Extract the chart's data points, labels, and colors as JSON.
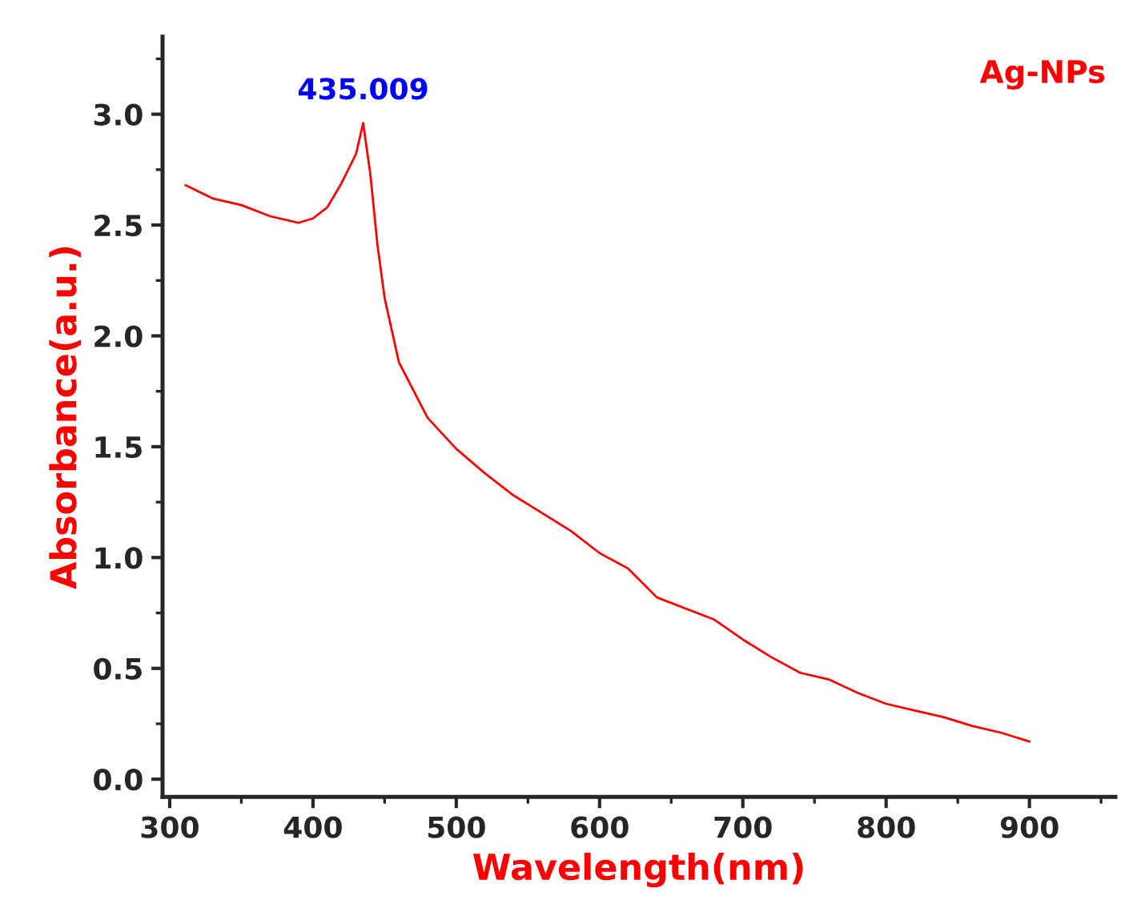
{
  "chart_data": {
    "type": "line",
    "xlabel": "Wavelength(nm)",
    "ylabel": "Absorbance(a.u.)",
    "x": [
      311,
      330,
      350,
      370,
      390,
      400,
      410,
      420,
      430,
      435,
      440,
      445,
      450,
      460,
      480,
      500,
      520,
      540,
      560,
      580,
      600,
      620,
      640,
      660,
      680,
      700,
      720,
      740,
      760,
      780,
      800,
      820,
      840,
      860,
      880,
      900
    ],
    "series": [
      {
        "name": "Ag-NPs",
        "color": "#ff0000",
        "values": [
          2.68,
          2.62,
          2.59,
          2.54,
          2.51,
          2.53,
          2.58,
          2.69,
          2.82,
          2.96,
          2.73,
          2.41,
          2.17,
          1.88,
          1.63,
          1.49,
          1.38,
          1.28,
          1.2,
          1.12,
          1.02,
          0.95,
          0.82,
          0.77,
          0.72,
          0.63,
          0.55,
          0.48,
          0.45,
          0.39,
          0.34,
          0.31,
          0.28,
          0.24,
          0.21,
          0.17
        ]
      }
    ],
    "xlim": [
      295,
      960
    ],
    "xticks": [
      300,
      400,
      500,
      600,
      700,
      800,
      900
    ],
    "ylim": [
      -0.08,
      3.35
    ],
    "yticks": [
      {
        "value": 0,
        "label": "0.0"
      },
      {
        "value": 0.5,
        "label": "0.5"
      },
      {
        "value": 1,
        "label": "1.0"
      },
      {
        "value": 1.5,
        "label": "1.5"
      },
      {
        "value": 2,
        "label": "2.0"
      },
      {
        "value": 2.5,
        "label": "2.5"
      },
      {
        "value": 3,
        "label": "3.0"
      }
    ],
    "annotations": [
      {
        "text": "435.009",
        "x": 435,
        "y": 2.96
      }
    ],
    "legend": "top right",
    "grid": false
  }
}
